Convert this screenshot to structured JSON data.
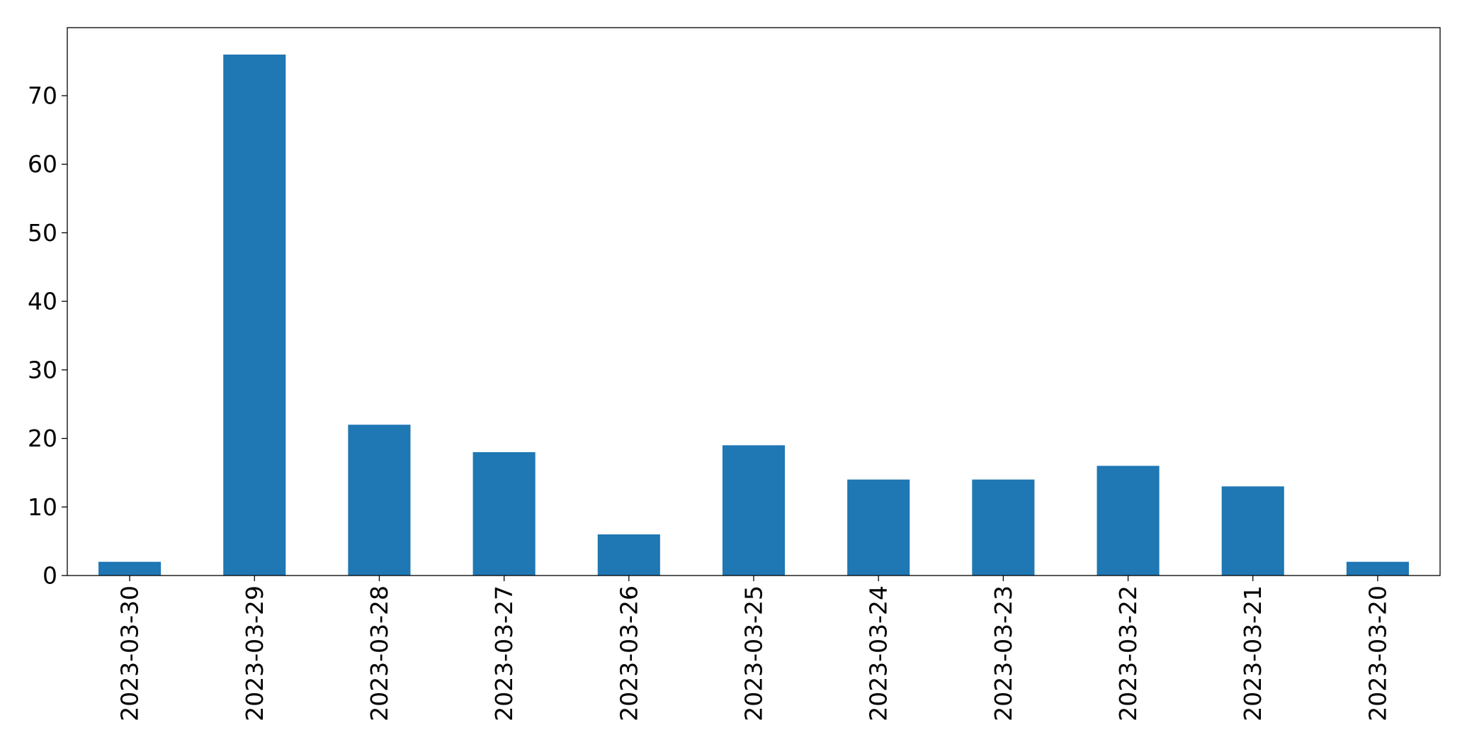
{
  "chart_data": {
    "type": "bar",
    "title": "",
    "xlabel": "",
    "ylabel": "",
    "categories": [
      "2023-03-30",
      "2023-03-29",
      "2023-03-28",
      "2023-03-27",
      "2023-03-26",
      "2023-03-25",
      "2023-03-24",
      "2023-03-23",
      "2023-03-22",
      "2023-03-21",
      "2023-03-20"
    ],
    "values": [
      2,
      76,
      22,
      18,
      6,
      19,
      14,
      14,
      16,
      13,
      2
    ],
    "ylim": [
      0,
      80
    ],
    "yticks": [
      0,
      10,
      20,
      30,
      40,
      50,
      60,
      70
    ],
    "bar_color": "#1f77b4",
    "grid": false,
    "legend": "none"
  }
}
